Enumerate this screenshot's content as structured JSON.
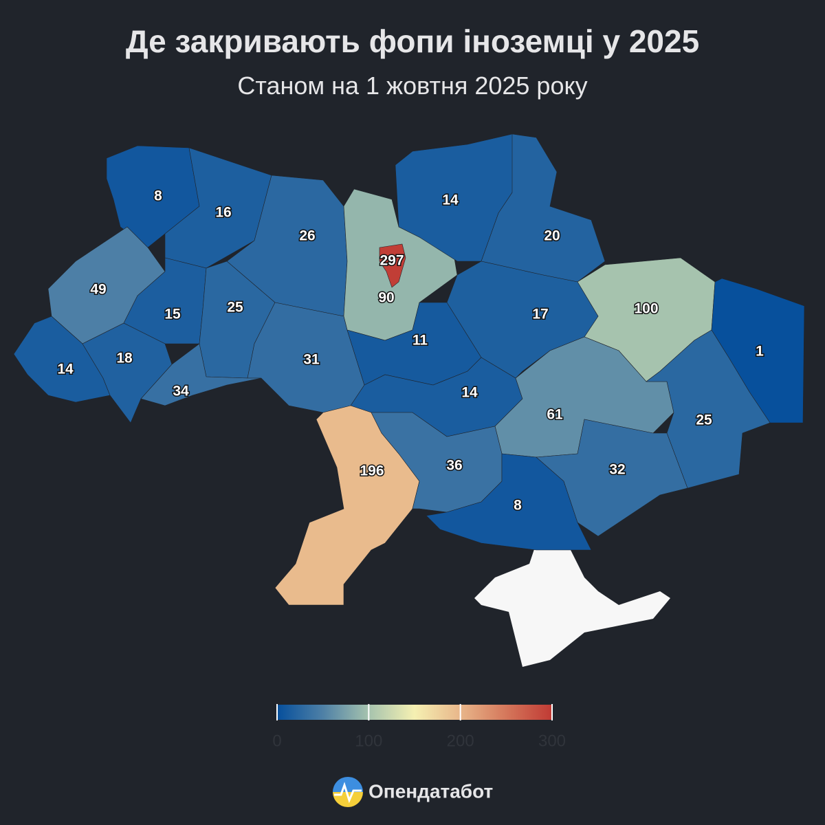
{
  "chart_data": {
    "type": "choropleth",
    "title": "Де закривають фопи іноземці у 2025",
    "subtitle": "Станом на 1 жовтня 2025 року",
    "values": [
      8,
      16,
      26,
      297,
      90,
      14,
      20,
      49,
      15,
      25,
      100,
      17,
      1,
      14,
      18,
      31,
      11,
      34,
      14,
      61,
      25,
      196,
      36,
      32,
      8
    ],
    "clim": [
      0,
      300
    ],
    "ticks": [
      0,
      100,
      200,
      300
    ],
    "colors": [
      "#064f9c",
      "#4e80a6",
      "#a6c3ae",
      "#f5f0b2",
      "#e8b68a",
      "#d5775b",
      "#c03a34"
    ],
    "brand": "Опендатабот"
  }
}
